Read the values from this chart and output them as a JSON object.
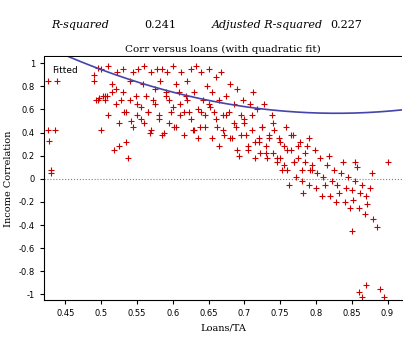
{
  "title": "Corr versus loans (with quadratic fit)",
  "xlabel": "Loans/TA",
  "ylabel": "Income Correlation",
  "xlim": [
    0.42,
    0.92
  ],
  "ylim": [
    -1.05,
    1.05
  ],
  "xticks": [
    0.45,
    0.5,
    0.55,
    0.6,
    0.65,
    0.7,
    0.75,
    0.8,
    0.85,
    0.9
  ],
  "yticks": [
    -1,
    -0.8,
    -0.6,
    -0.4,
    -0.2,
    0,
    0.2,
    0.4,
    0.6,
    0.8,
    1
  ],
  "header_labels": [
    "R-squared",
    "0.241",
    "Adjusted R-squared",
    "0.227"
  ],
  "scatter_color": "#cc0000",
  "fit_color": "#4444aa",
  "legend_label": "Fitted",
  "quad_coeffs": [
    3.5,
    -5.8,
    2.97
  ],
  "scatter_x": [
    0.425,
    0.427,
    0.43,
    0.435,
    0.438,
    0.49,
    0.492,
    0.495,
    0.497,
    0.5,
    0.502,
    0.505,
    0.508,
    0.51,
    0.515,
    0.518,
    0.52,
    0.522,
    0.525,
    0.528,
    0.53,
    0.532,
    0.535,
    0.538,
    0.54,
    0.542,
    0.545,
    0.548,
    0.55,
    0.552,
    0.555,
    0.558,
    0.56,
    0.562,
    0.565,
    0.568,
    0.57,
    0.572,
    0.575,
    0.578,
    0.58,
    0.582,
    0.585,
    0.588,
    0.59,
    0.592,
    0.595,
    0.598,
    0.6,
    0.602,
    0.605,
    0.608,
    0.61,
    0.612,
    0.615,
    0.618,
    0.62,
    0.622,
    0.625,
    0.628,
    0.63,
    0.632,
    0.635,
    0.638,
    0.64,
    0.642,
    0.645,
    0.648,
    0.65,
    0.652,
    0.655,
    0.658,
    0.66,
    0.662,
    0.665,
    0.668,
    0.67,
    0.672,
    0.675,
    0.678,
    0.68,
    0.682,
    0.685,
    0.688,
    0.69,
    0.692,
    0.695,
    0.698,
    0.7,
    0.702,
    0.705,
    0.708,
    0.71,
    0.712,
    0.715,
    0.718,
    0.72,
    0.722,
    0.725,
    0.728,
    0.73,
    0.732,
    0.735,
    0.738,
    0.74,
    0.742,
    0.745,
    0.748,
    0.75,
    0.752,
    0.755,
    0.758,
    0.76,
    0.762,
    0.765,
    0.768,
    0.77,
    0.772,
    0.775,
    0.778,
    0.78,
    0.782,
    0.785,
    0.788,
    0.79,
    0.792,
    0.795,
    0.798,
    0.8,
    0.802,
    0.805,
    0.808,
    0.81,
    0.812,
    0.815,
    0.818,
    0.82,
    0.822,
    0.825,
    0.828,
    0.83,
    0.832,
    0.835,
    0.838,
    0.84,
    0.842,
    0.845,
    0.848,
    0.85,
    0.852,
    0.855,
    0.858,
    0.86,
    0.862,
    0.865,
    0.868,
    0.87,
    0.872,
    0.875,
    0.878,
    0.88,
    0.885,
    0.89,
    0.895,
    0.9,
    0.425,
    0.43,
    0.49,
    0.495,
    0.5,
    0.505,
    0.51,
    0.515,
    0.52,
    0.525,
    0.53,
    0.535,
    0.54,
    0.545,
    0.55,
    0.555,
    0.56,
    0.565,
    0.57,
    0.575,
    0.58,
    0.585,
    0.59,
    0.595,
    0.6,
    0.605,
    0.61,
    0.615,
    0.62,
    0.625,
    0.63,
    0.635,
    0.64,
    0.645,
    0.65,
    0.655,
    0.66,
    0.665,
    0.67,
    0.675,
    0.68,
    0.685,
    0.69,
    0.695,
    0.7,
    0.705,
    0.71,
    0.715,
    0.72,
    0.725,
    0.73,
    0.735,
    0.74,
    0.745,
    0.75,
    0.755,
    0.76,
    0.765,
    0.77,
    0.775,
    0.78,
    0.785,
    0.79,
    0.795,
    0.85,
    0.855,
    0.86,
    0.865,
    0.87
  ],
  "scatter_y": [
    0.85,
    0.33,
    0.05,
    0.42,
    0.85,
    0.9,
    0.68,
    0.96,
    0.7,
    0.95,
    0.72,
    0.68,
    0.72,
    0.98,
    0.75,
    0.25,
    0.78,
    0.92,
    0.28,
    0.68,
    0.95,
    0.58,
    0.32,
    0.18,
    0.85,
    0.5,
    0.92,
    0.72,
    0.65,
    0.95,
    0.52,
    0.82,
    0.98,
    0.72,
    0.58,
    0.4,
    0.92,
    0.68,
    0.78,
    0.95,
    0.55,
    0.85,
    0.95,
    0.4,
    0.75,
    0.92,
    0.68,
    0.58,
    0.98,
    0.45,
    0.82,
    0.75,
    0.65,
    0.92,
    0.58,
    0.72,
    0.85,
    0.58,
    0.95,
    0.42,
    0.75,
    0.98,
    0.6,
    0.45,
    0.92,
    0.68,
    0.55,
    0.8,
    0.95,
    0.62,
    0.75,
    0.58,
    0.88,
    0.45,
    0.68,
    0.92,
    0.55,
    0.38,
    0.72,
    0.58,
    0.82,
    0.35,
    0.65,
    0.45,
    0.78,
    0.2,
    0.55,
    0.68,
    0.48,
    0.38,
    0.25,
    0.65,
    0.55,
    0.75,
    0.32,
    0.6,
    0.35,
    0.22,
    0.45,
    0.65,
    0.28,
    0.18,
    0.38,
    0.55,
    0.22,
    0.42,
    0.15,
    0.35,
    0.18,
    0.08,
    0.28,
    0.45,
    0.08,
    -0.05,
    0.25,
    0.38,
    0.15,
    0.02,
    0.18,
    0.32,
    0.08,
    -0.12,
    0.15,
    0.28,
    -0.05,
    0.08,
    0.12,
    0.25,
    -0.08,
    0.05,
    0.18,
    -0.15,
    0.02,
    -0.05,
    0.12,
    0.2,
    -0.15,
    -0.02,
    0.08,
    -0.2,
    -0.05,
    -0.12,
    0.05,
    0.15,
    -0.2,
    -0.08,
    0.02,
    -0.25,
    -0.1,
    -0.18,
    -0.02,
    0.1,
    -0.25,
    -0.12,
    -0.05,
    -0.3,
    -0.15,
    -0.22,
    -0.08,
    0.05,
    -0.35,
    -0.42,
    -0.95,
    -1.02,
    0.15,
    0.42,
    0.08,
    0.85,
    0.68,
    0.42,
    0.72,
    0.55,
    0.82,
    0.65,
    0.48,
    0.75,
    0.58,
    0.68,
    0.45,
    0.55,
    0.62,
    0.48,
    0.58,
    0.42,
    0.65,
    0.52,
    0.38,
    0.72,
    0.48,
    0.62,
    0.45,
    0.55,
    0.38,
    0.68,
    0.52,
    0.42,
    0.35,
    0.58,
    0.45,
    0.65,
    0.35,
    0.52,
    0.28,
    0.42,
    0.55,
    0.35,
    0.48,
    0.25,
    0.38,
    0.52,
    0.28,
    0.42,
    0.18,
    0.32,
    0.45,
    0.22,
    0.35,
    0.48,
    0.18,
    0.32,
    0.12,
    0.25,
    0.38,
    0.15,
    0.28,
    -0.02,
    0.22,
    0.35,
    0.08,
    -0.45,
    0.15,
    -0.98,
    -1.02,
    -0.92
  ]
}
